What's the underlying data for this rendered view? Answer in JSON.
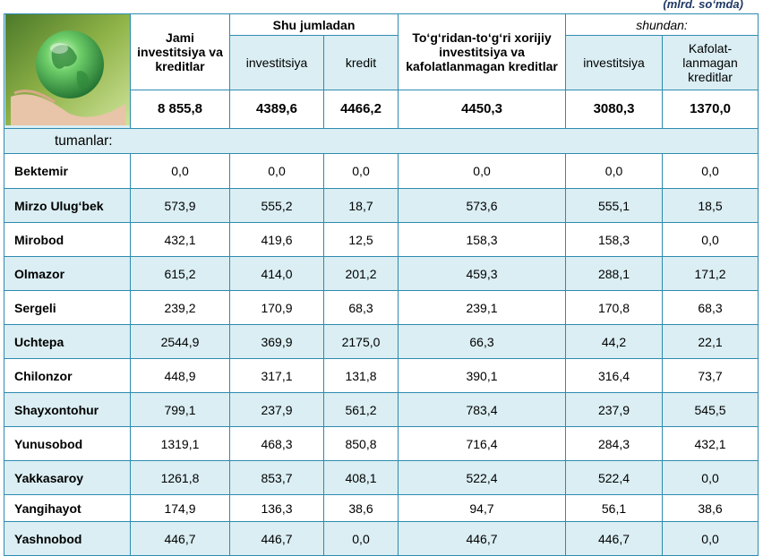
{
  "unit_note": "(mlrd. so‘mda)",
  "header": {
    "total_label": "Jami investitsiya va kreditlar",
    "group_label": "Shu jumladan",
    "sub_investitsiya": "investitsiya",
    "sub_kredit": "kredit",
    "fdi_label": "To‘g‘ridan-to‘g‘ri xorijiy investitsiya va kafolatlanmagan kreditlar",
    "shundan_label": "shundan:",
    "sub2_investitsiya": "investitsiya",
    "sub2_kafolat": "Kafolat-lanmagan kreditlar"
  },
  "totals": [
    "8 855,8",
    "4389,6",
    "4466,2",
    "4450,3",
    "3080,3",
    "1370,0"
  ],
  "section_label": "tumanlar:",
  "image_icon": "globe-in-hand-icon",
  "rows": [
    {
      "name": "Bektemir",
      "values": [
        "0,0",
        "0,0",
        "0,0",
        "0,0",
        "0,0",
        "0,0"
      ]
    },
    {
      "name": "Mirzo Ulug‘bek",
      "values": [
        "573,9",
        "555,2",
        "18,7",
        "573,6",
        "555,1",
        "18,5"
      ]
    },
    {
      "name": "Mirobod",
      "values": [
        "432,1",
        "419,6",
        "12,5",
        "158,3",
        "158,3",
        "0,0"
      ]
    },
    {
      "name": "Olmazor",
      "values": [
        "615,2",
        "414,0",
        "201,2",
        "459,3",
        "288,1",
        "171,2"
      ]
    },
    {
      "name": "Sergeli",
      "values": [
        "239,2",
        "170,9",
        "68,3",
        "239,1",
        "170,8",
        "68,3"
      ]
    },
    {
      "name": "Uchtepa",
      "values": [
        "2544,9",
        "369,9",
        "2175,0",
        "66,3",
        "44,2",
        "22,1"
      ]
    },
    {
      "name": "Chilonzor",
      "values": [
        "448,9",
        "317,1",
        "131,8",
        "390,1",
        "316,4",
        "73,7"
      ]
    },
    {
      "name": "Shayxontohur",
      "values": [
        "799,1",
        "237,9",
        "561,2",
        "783,4",
        "237,9",
        "545,5"
      ]
    },
    {
      "name": "Yunusobod",
      "values": [
        "1319,1",
        "468,3",
        "850,8",
        "716,4",
        "284,3",
        "432,1"
      ]
    },
    {
      "name": "Yakkasaroy",
      "values": [
        "1261,8",
        "853,7",
        "408,1",
        "522,4",
        "522,4",
        "0,0"
      ]
    },
    {
      "name": "Yangihayot",
      "values": [
        "174,9",
        "136,3",
        "38,6",
        "94,7",
        "56,1",
        "38,6"
      ]
    },
    {
      "name": "Yashnobod",
      "values": [
        "446,7",
        "446,7",
        "0,0",
        "446,7",
        "446,7",
        "0,0"
      ]
    }
  ]
}
